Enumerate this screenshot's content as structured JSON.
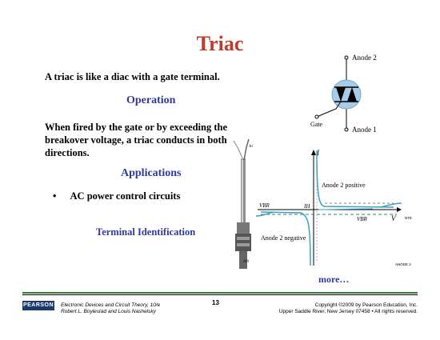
{
  "slide": {
    "title": "Triac",
    "intro": "A triac is like a diac with a gate terminal.",
    "operation_heading": "Operation",
    "operation_text": [
      "When fired by the gate or by exceeding the",
      "breakover voltage, a triac conducts in both",
      "directions."
    ],
    "applications_heading": "Applications",
    "bullet_symbol": "•",
    "applications": [
      "AC power control circuits"
    ],
    "terminal_heading": "Terminal Identification",
    "more_link": "more…"
  },
  "symbol": {
    "anode2": "Anode 2",
    "anode1": "Anode 1",
    "gate": "Gate"
  },
  "photo": {
    "label_top": "A1",
    "label_bottom": "AN"
  },
  "graph": {
    "i_label": "I",
    "v_label": "V",
    "vbr_left": "VBR",
    "vbr_right": "VBR",
    "ih_label": "IH",
    "anode2_positive": "Anode 2 positive",
    "anode2_negative": "Anode 2 negative",
    "edge_right": "NTE",
    "edge_bottom_right": "ANODE 2"
  },
  "footer": {
    "logo": "PEARSON",
    "book_line1": "Electronic Devices and Circuit Theory, 10/e",
    "book_line2": "Robert L. Boylestad and Louis Nashelsky",
    "page_number": "13",
    "copyright_line1": "Copyright ©2009 by Pearson Education, Inc.",
    "copyright_line2": "Upper Saddle River, New Jersey 07458 • All rights reserved."
  }
}
